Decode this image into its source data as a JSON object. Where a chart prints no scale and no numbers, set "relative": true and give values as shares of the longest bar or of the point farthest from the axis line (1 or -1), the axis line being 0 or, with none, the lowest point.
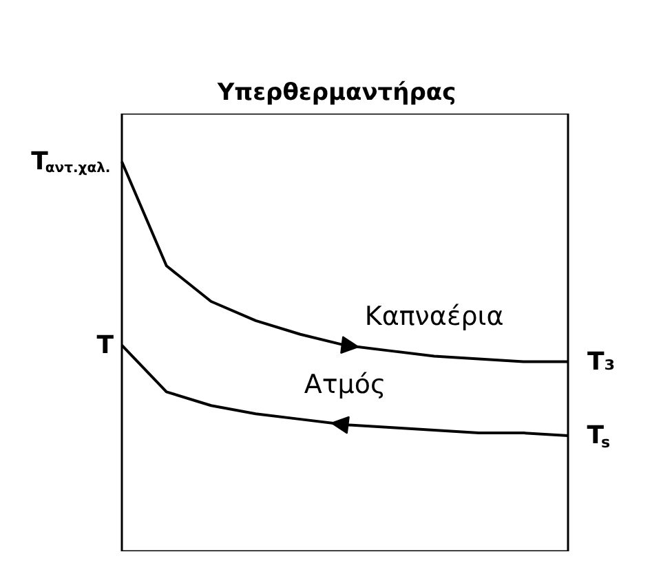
{
  "chart_data": {
    "type": "line",
    "title": "Υπερθερμαντήρας",
    "relative": true,
    "categories": [
      null,
      null,
      null,
      null,
      null,
      null,
      null,
      null,
      null,
      null,
      null
    ],
    "series": [
      {
        "name": "Καπναέρια",
        "color": "#000000",
        "values": [
          1.0,
          0.62,
          0.49,
          0.42,
          0.37,
          0.33,
          0.31,
          0.29,
          0.28,
          0.27,
          0.27
        ]
      },
      {
        "name": "Ατμός",
        "color": "#000000",
        "values": [
          0.33,
          0.16,
          0.11,
          0.08,
          0.06,
          0.04,
          0.03,
          0.02,
          0.01,
          0.01,
          0.0
        ]
      }
    ],
    "annotations": [
      "T$_{αντ.χαλ.}$",
      "T",
      "T₃",
      "T$_{s}$"
    ],
    "grid": false,
    "legend": false,
    "marker": "none",
    "line_style": "solid",
    "tick_labels": false
  }
}
